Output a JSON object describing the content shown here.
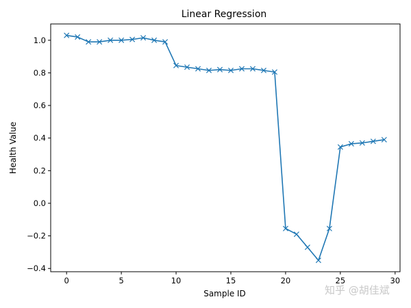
{
  "chart_data": {
    "type": "line",
    "title": "Linear Regression",
    "xlabel": "Sample ID",
    "ylabel": "Health Value",
    "marker": "x",
    "color": "#1f77b4",
    "xlim": [
      -1.45,
      30.45
    ],
    "ylim": [
      -0.42,
      1.1
    ],
    "xticks": [
      0,
      5,
      10,
      15,
      20,
      25,
      30
    ],
    "yticks": [
      -0.4,
      -0.2,
      0.0,
      0.2,
      0.4,
      0.6,
      0.8,
      1.0
    ],
    "ytick_labels": [
      "−0.4",
      "−0.2",
      "0.0",
      "0.2",
      "0.4",
      "0.6",
      "0.8",
      "1.0"
    ],
    "grid": false,
    "series": [
      {
        "x": [
          0,
          1,
          2,
          3,
          4,
          5,
          6,
          7,
          8,
          9,
          10,
          11,
          12,
          13,
          14,
          15,
          16,
          17,
          18,
          19,
          20,
          21,
          22,
          23,
          24,
          25,
          26,
          27,
          28,
          29
        ],
        "values": [
          1.03,
          1.02,
          0.99,
          0.99,
          1.0,
          1.0,
          1.005,
          1.015,
          1.0,
          0.99,
          0.845,
          0.835,
          0.825,
          0.815,
          0.82,
          0.815,
          0.825,
          0.825,
          0.815,
          0.805,
          -0.155,
          -0.19,
          -0.27,
          -0.35,
          -0.155,
          0.345,
          0.365,
          0.37,
          0.38,
          0.39
        ]
      }
    ]
  },
  "watermark": "知乎 @胡佳斌"
}
